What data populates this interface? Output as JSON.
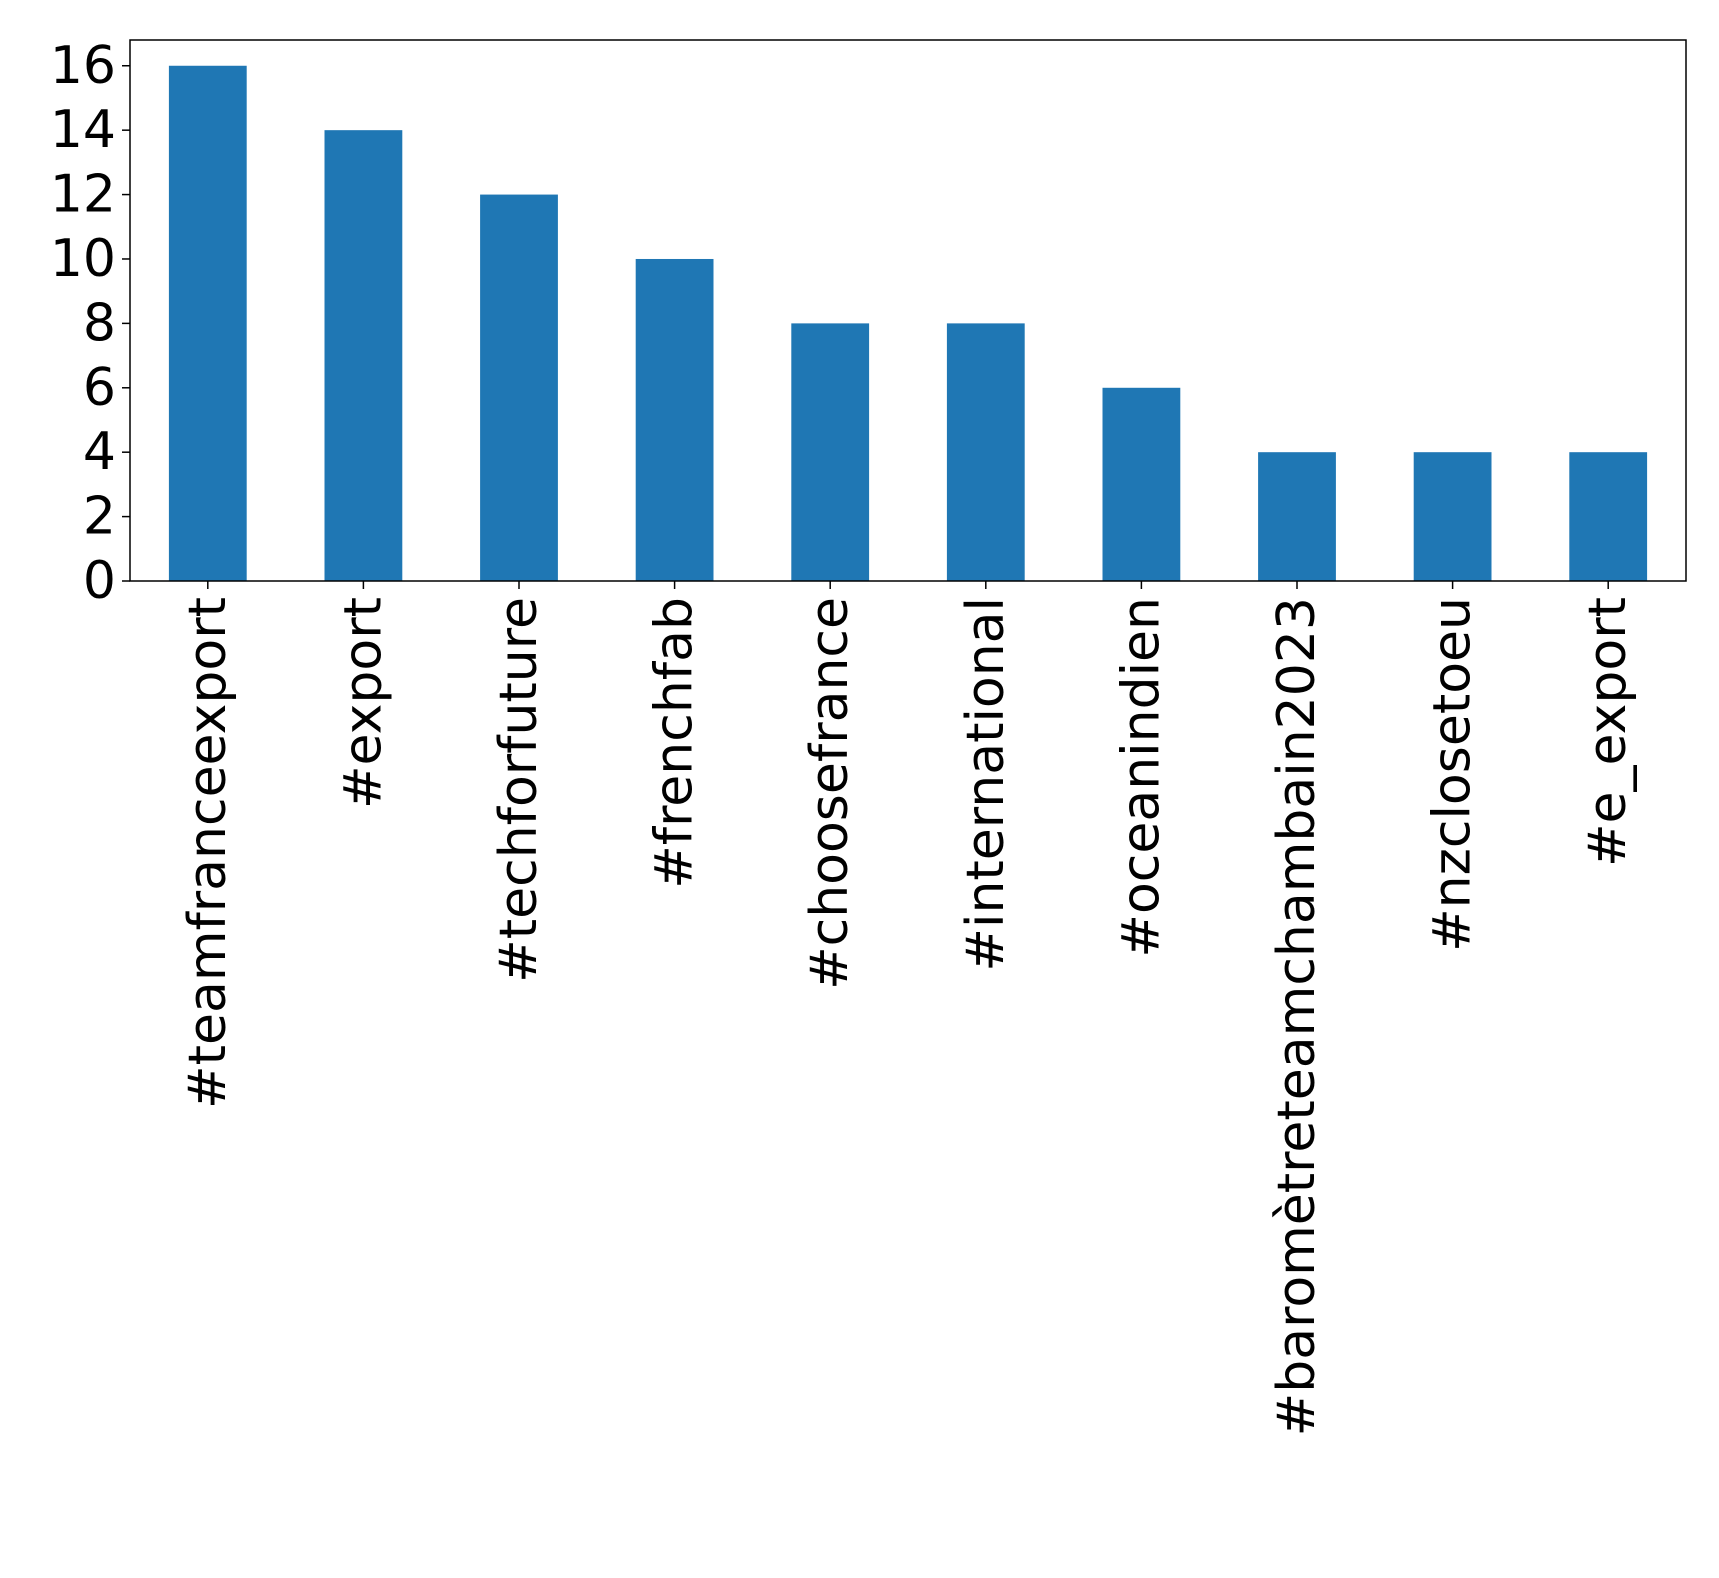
{
  "chart_data": {
    "type": "bar",
    "title": "",
    "xlabel": "",
    "ylabel": "",
    "categories": [
      "#teamfranceexport",
      "#export",
      "#techforfuture",
      "#frenchfab",
      "#choosefrance",
      "#international",
      "#oceanindien",
      "#baromètreteamchambain2023",
      "#nzclosetoeu",
      "#e_export"
    ],
    "values": [
      16,
      14,
      12,
      10,
      8,
      8,
      6,
      4,
      4,
      4
    ],
    "ylim": [
      0,
      16.8
    ],
    "yticks": [
      0,
      2,
      4,
      6,
      8,
      10,
      12,
      14,
      16
    ],
    "bar_color": "#1f77b4",
    "grid": false,
    "legend": "none"
  }
}
